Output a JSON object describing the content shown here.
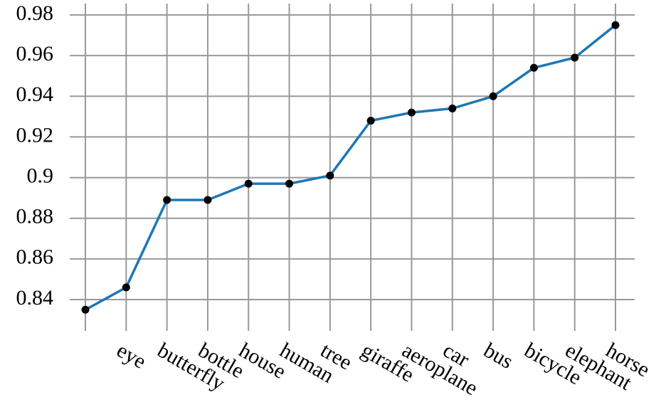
{
  "chart_data": {
    "type": "line",
    "categories": [
      null,
      "eye",
      "butterfly",
      "bottle",
      "house",
      "human",
      "tree",
      "giraffe",
      "aeroplane",
      "car",
      "bus",
      "bicycle",
      "elephant",
      "horse"
    ],
    "values": [
      0.835,
      0.846,
      0.889,
      0.889,
      0.897,
      0.897,
      0.901,
      0.928,
      0.932,
      0.934,
      0.94,
      0.954,
      0.959,
      0.975
    ],
    "color": "#1f77b4",
    "marker_color": "#000000",
    "ylim": [
      0.8246,
      0.9856
    ],
    "yticks": [
      0.84,
      0.86,
      0.88,
      0.9,
      0.92,
      0.94,
      0.96,
      0.98
    ],
    "grid": true
  }
}
